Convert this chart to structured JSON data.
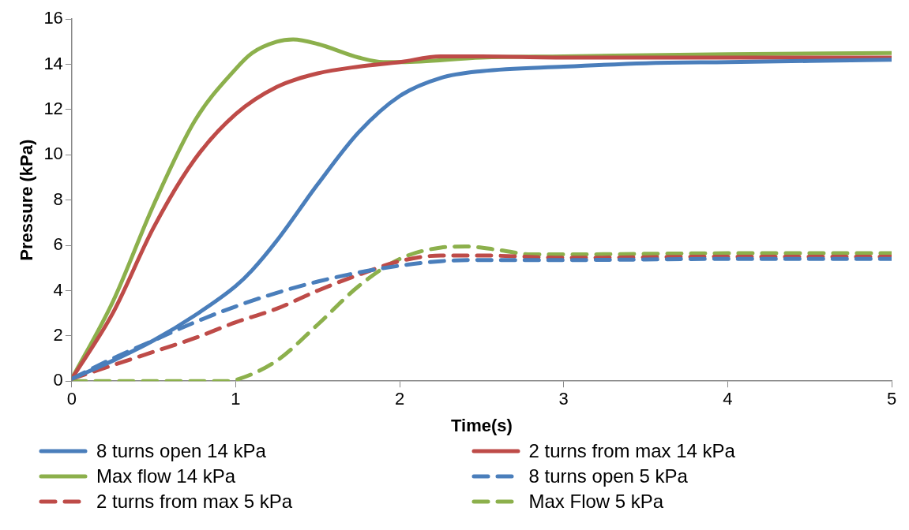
{
  "chart_data": {
    "type": "line",
    "xlabel": "Time(s)",
    "ylabel": "Pressure (kPa)",
    "xlim": [
      0,
      5
    ],
    "ylim": [
      0,
      16
    ],
    "xticks": [
      0,
      1,
      2,
      3,
      4,
      5
    ],
    "yticks": [
      0,
      2,
      4,
      6,
      8,
      10,
      12,
      14,
      16
    ],
    "legend": "bottom",
    "marker": "none",
    "series": [
      {
        "name": "8 turns open 14 kPa",
        "color": "#4a7ebb",
        "line_style": "solid",
        "x": [
          0,
          0.25,
          0.5,
          0.75,
          1,
          1.1,
          1.25,
          1.5,
          1.75,
          2,
          2.25,
          2.5,
          3,
          3.5,
          4,
          5
        ],
        "values": [
          0.1,
          0.9,
          1.8,
          2.9,
          4.2,
          4.9,
          6.2,
          8.7,
          11,
          12.6,
          13.4,
          13.7,
          13.9,
          14.05,
          14.1,
          14.2
        ]
      },
      {
        "name": "2 turns from max 14 kPa",
        "color": "#be4b48",
        "line_style": "solid",
        "x": [
          0,
          0.25,
          0.5,
          0.75,
          1,
          1.25,
          1.5,
          1.75,
          2,
          2.25,
          2.5,
          3,
          4,
          5
        ],
        "values": [
          0.1,
          3,
          6.8,
          9.8,
          11.8,
          13,
          13.6,
          13.9,
          14.1,
          14.35,
          14.35,
          14.3,
          14.3,
          14.3
        ]
      },
      {
        "name": "Max flow 14 kPa",
        "color": "#8cb04c",
        "line_style": "solid",
        "x": [
          0,
          0.25,
          0.5,
          0.75,
          1,
          1.1,
          1.25,
          1.35,
          1.5,
          1.75,
          1.9,
          2,
          2.5,
          3,
          4,
          5
        ],
        "values": [
          0.1,
          3.5,
          7.8,
          11.5,
          13.8,
          14.5,
          15,
          15.1,
          14.9,
          14.3,
          14.1,
          14.1,
          14.3,
          14.35,
          14.45,
          14.5
        ]
      },
      {
        "name": "8 turns open 5 kPa",
        "color": "#4a7ebb",
        "line_style": "dashed",
        "x": [
          0,
          0.25,
          0.5,
          0.75,
          1,
          1.25,
          1.5,
          1.75,
          2,
          2.25,
          2.5,
          3,
          4,
          5
        ],
        "values": [
          0.1,
          1,
          1.8,
          2.6,
          3.3,
          3.9,
          4.4,
          4.8,
          5.1,
          5.3,
          5.35,
          5.35,
          5.4,
          5.4
        ]
      },
      {
        "name": "2 turns from max 5 kPa",
        "color": "#be4b48",
        "line_style": "dashed",
        "x": [
          0,
          0.25,
          0.5,
          0.75,
          1,
          1.25,
          1.5,
          1.75,
          2,
          2.25,
          2.5,
          3,
          4,
          5
        ],
        "values": [
          0.1,
          0.7,
          1.3,
          1.9,
          2.6,
          3.2,
          4,
          4.7,
          5.3,
          5.55,
          5.55,
          5.45,
          5.5,
          5.5
        ]
      },
      {
        "name": "Max Flow 5 kPa",
        "color": "#8cb04c",
        "line_style": "dashed",
        "x": [
          0,
          0.5,
          0.95,
          1,
          1.25,
          1.5,
          1.75,
          2,
          2.25,
          2.4,
          2.6,
          2.8,
          3,
          4,
          5
        ],
        "values": [
          0,
          0,
          0,
          0.05,
          0.9,
          2.5,
          4.2,
          5.4,
          5.9,
          5.95,
          5.8,
          5.6,
          5.6,
          5.65,
          5.65
        ]
      }
    ]
  }
}
